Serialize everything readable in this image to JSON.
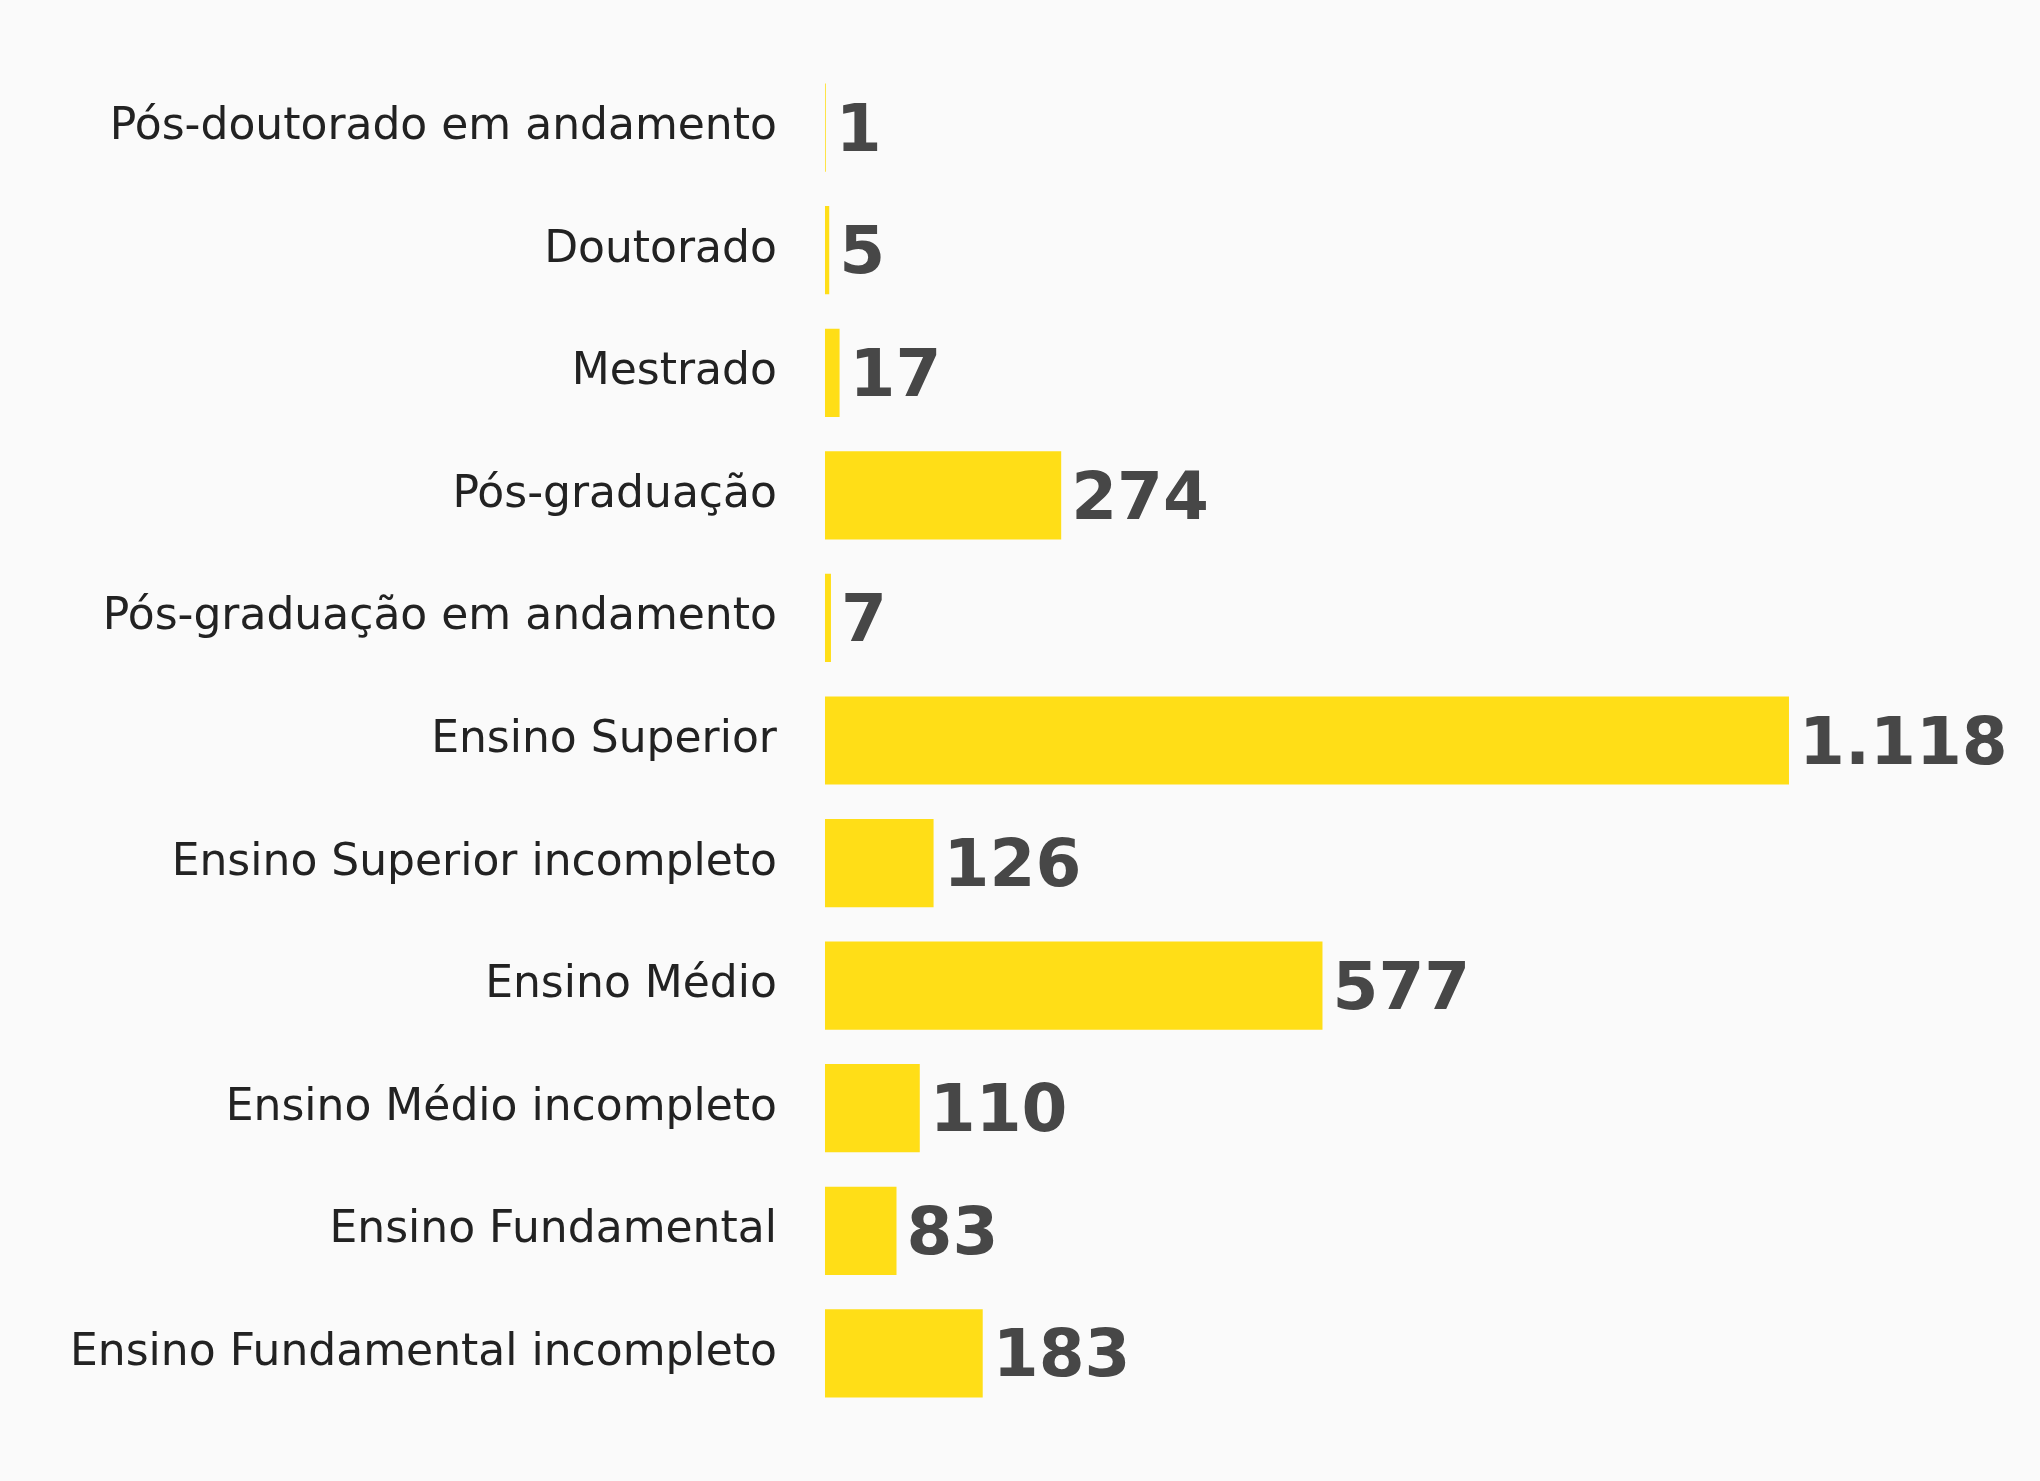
{
  "chart_data": {
    "type": "bar",
    "orientation": "horizontal",
    "categories": [
      "Pós-doutorado em andamento",
      "Doutorado",
      "Mestrado",
      "Pós-graduação",
      "Pós-graduação em andamento",
      "Ensino Superior",
      "Ensino Superior incompleto",
      "Ensino Médio",
      "Ensino Médio incompleto",
      "Ensino Fundamental",
      "Ensino Fundamental incompleto"
    ],
    "values": [
      1,
      5,
      17,
      274,
      7,
      1118,
      126,
      577,
      110,
      83,
      183
    ],
    "value_labels": [
      "1",
      "5",
      "17",
      "274",
      "7",
      "1.118",
      "126",
      "577",
      "110",
      "83",
      "183"
    ],
    "color": "#ffde17",
    "legend": false
  }
}
